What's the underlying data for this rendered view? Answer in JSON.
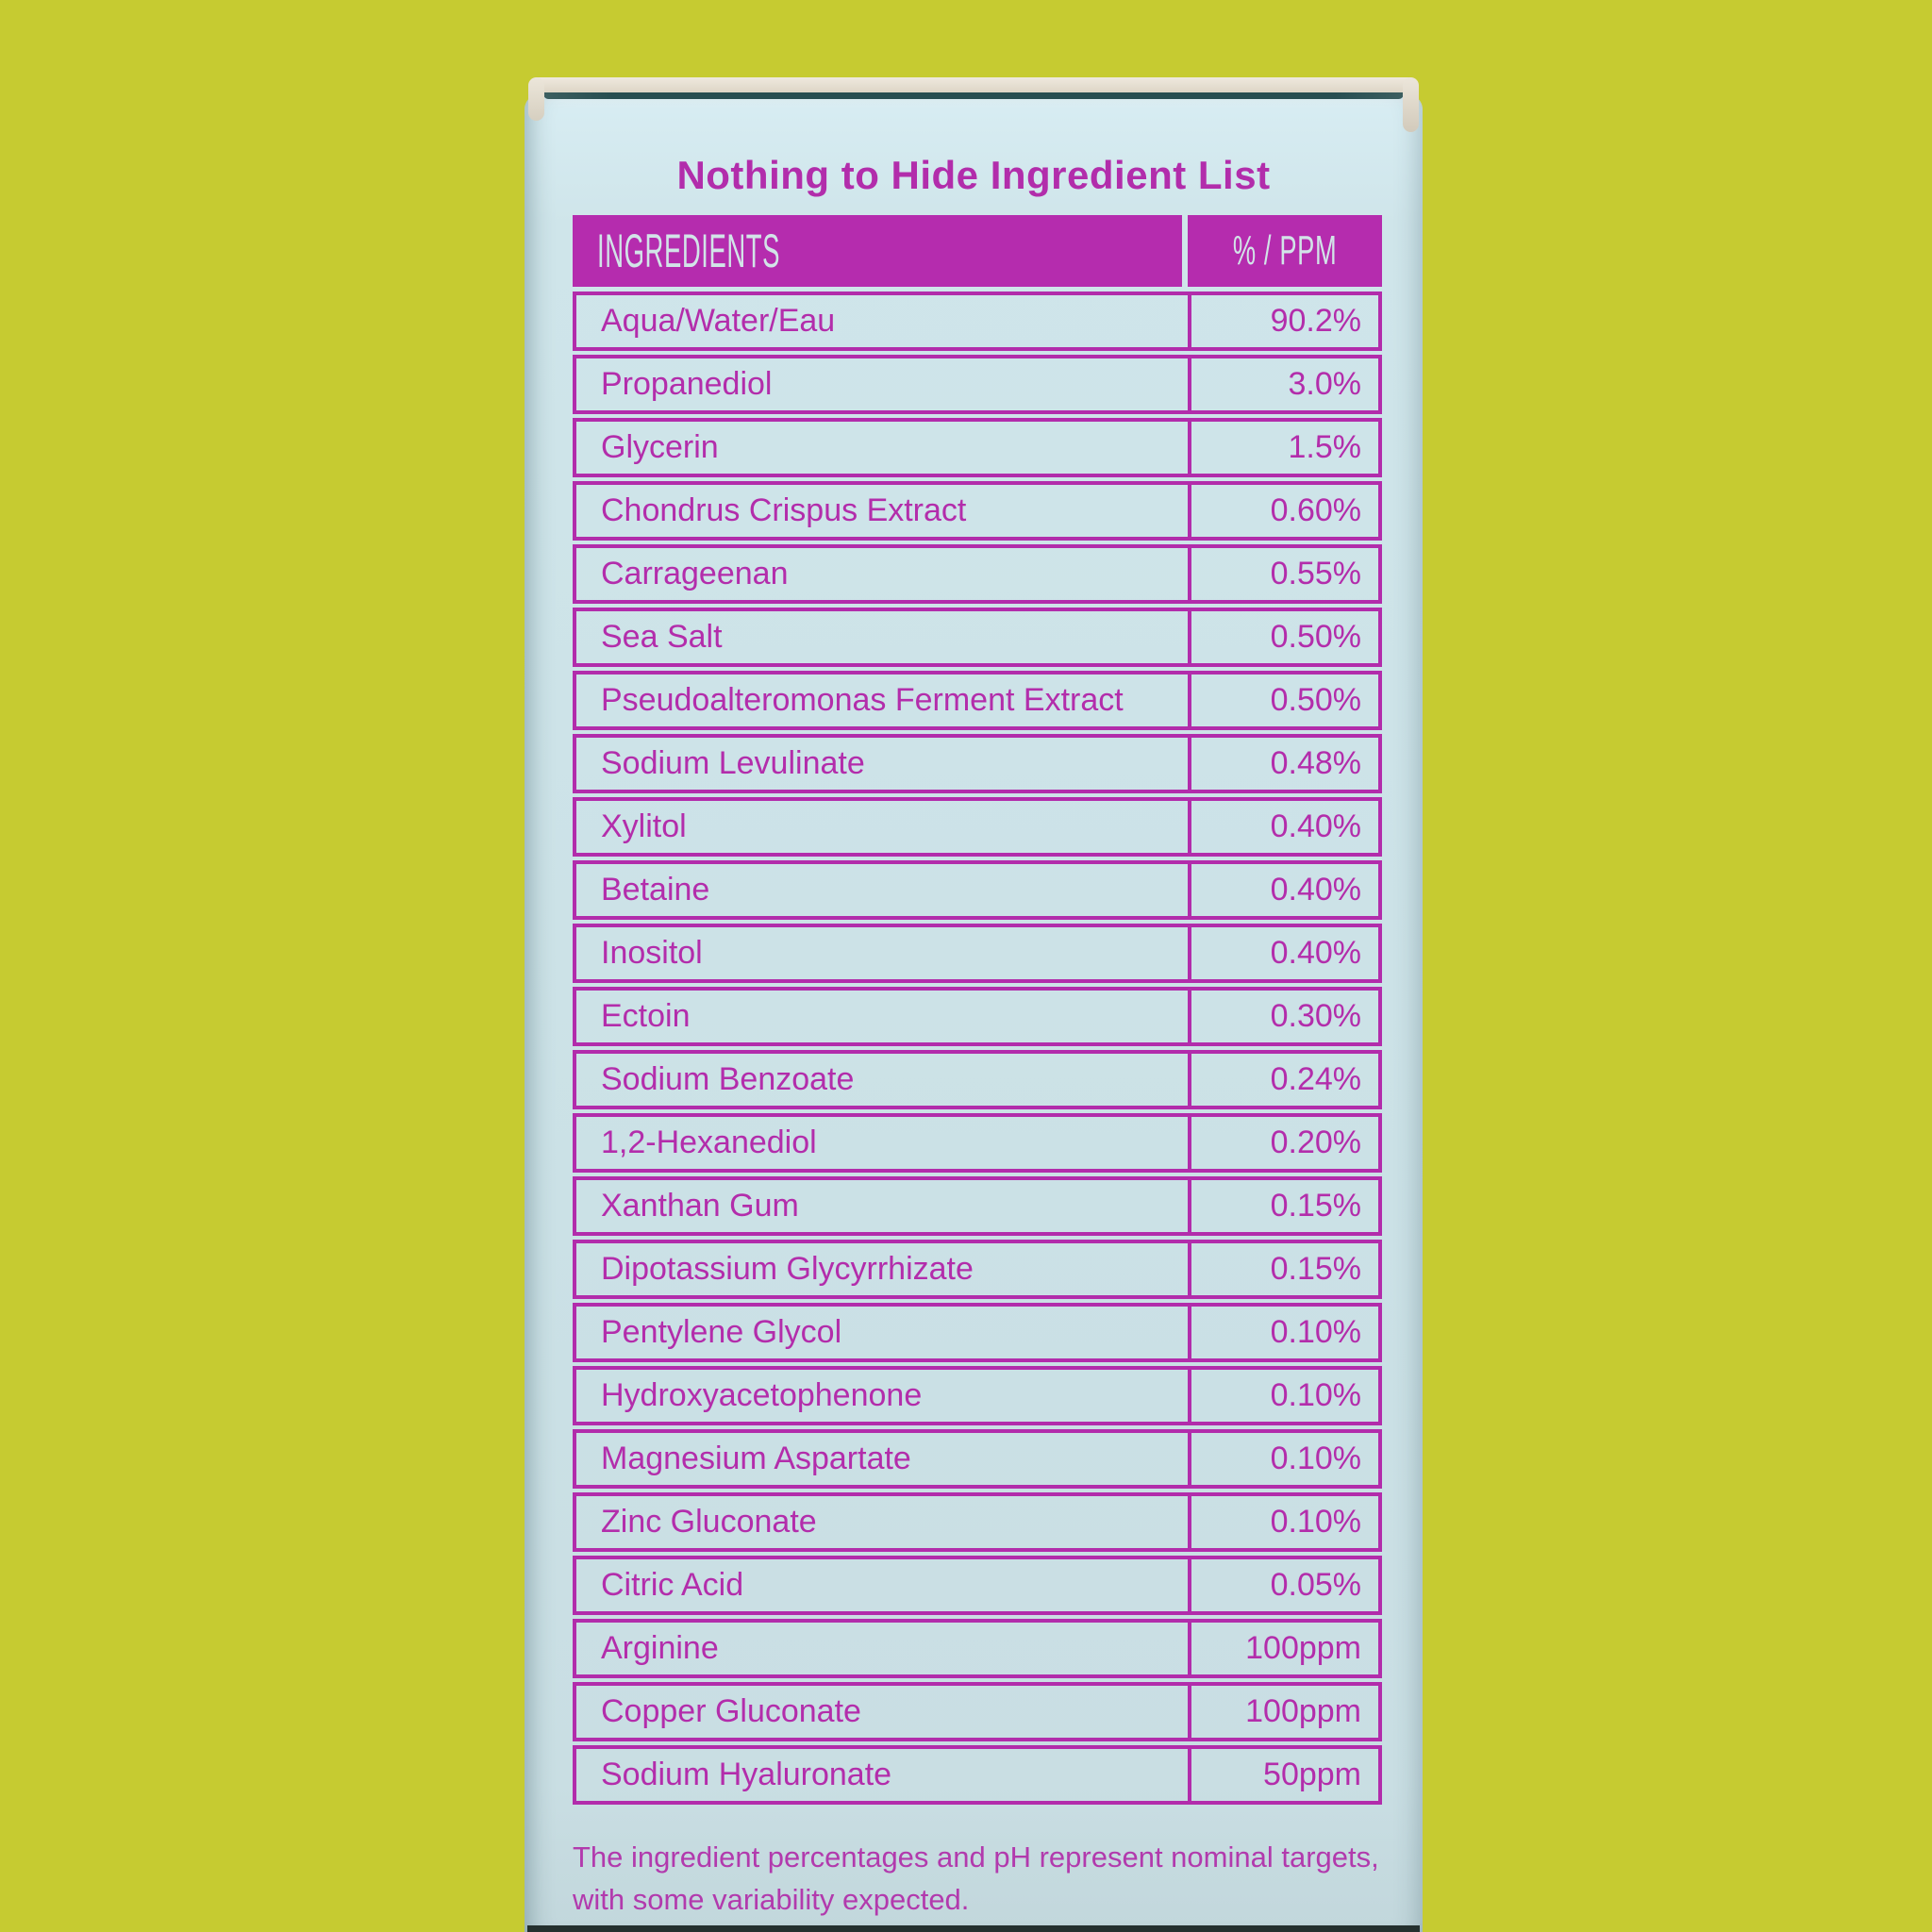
{
  "title": "Nothing to Hide Ingredient List",
  "table": {
    "headers": [
      "INGREDIENTS",
      "% / PPM"
    ],
    "rows": [
      {
        "name": "Aqua/Water/Eau",
        "value": "90.2%"
      },
      {
        "name": "Propanediol",
        "value": "3.0%"
      },
      {
        "name": "Glycerin",
        "value": "1.5%"
      },
      {
        "name": "Chondrus Crispus Extract",
        "value": "0.60%"
      },
      {
        "name": "Carrageenan",
        "value": "0.55%"
      },
      {
        "name": "Sea Salt",
        "value": "0.50%"
      },
      {
        "name": "Pseudoalteromonas Ferment Extract",
        "value": "0.50%"
      },
      {
        "name": "Sodium Levulinate",
        "value": "0.48%"
      },
      {
        "name": "Xylitol",
        "value": "0.40%"
      },
      {
        "name": "Betaine",
        "value": "0.40%"
      },
      {
        "name": "Inositol",
        "value": "0.40%"
      },
      {
        "name": "Ectoin",
        "value": "0.30%"
      },
      {
        "name": "Sodium Benzoate",
        "value": "0.24%"
      },
      {
        "name": "1,2-Hexanediol",
        "value": "0.20%"
      },
      {
        "name": "Xanthan Gum",
        "value": "0.15%"
      },
      {
        "name": "Dipotassium Glycyrrhizate",
        "value": "0.15%"
      },
      {
        "name": "Pentylene Glycol",
        "value": "0.10%"
      },
      {
        "name": "Hydroxyacetophenone",
        "value": "0.10%"
      },
      {
        "name": "Magnesium Aspartate",
        "value": "0.10%"
      },
      {
        "name": "Zinc Gluconate",
        "value": "0.10%"
      },
      {
        "name": "Citric Acid",
        "value": "0.05%"
      },
      {
        "name": "Arginine",
        "value": "100ppm"
      },
      {
        "name": "Copper Gluconate",
        "value": "100ppm"
      },
      {
        "name": "Sodium Hyaluronate",
        "value": "50ppm"
      }
    ]
  },
  "footer": {
    "line1": "The ingredient percentages and pH represent nominal targets,",
    "line2": "with some variability expected."
  },
  "colors": {
    "background": "#c6cb31",
    "box_face": "#cbe1e6",
    "magenta": "#b32dab",
    "header_fill": "#b52cae",
    "header_text": "#d2e4e8",
    "flap_cream": "#e6e0d3",
    "crease_teal": "#274e51"
  }
}
